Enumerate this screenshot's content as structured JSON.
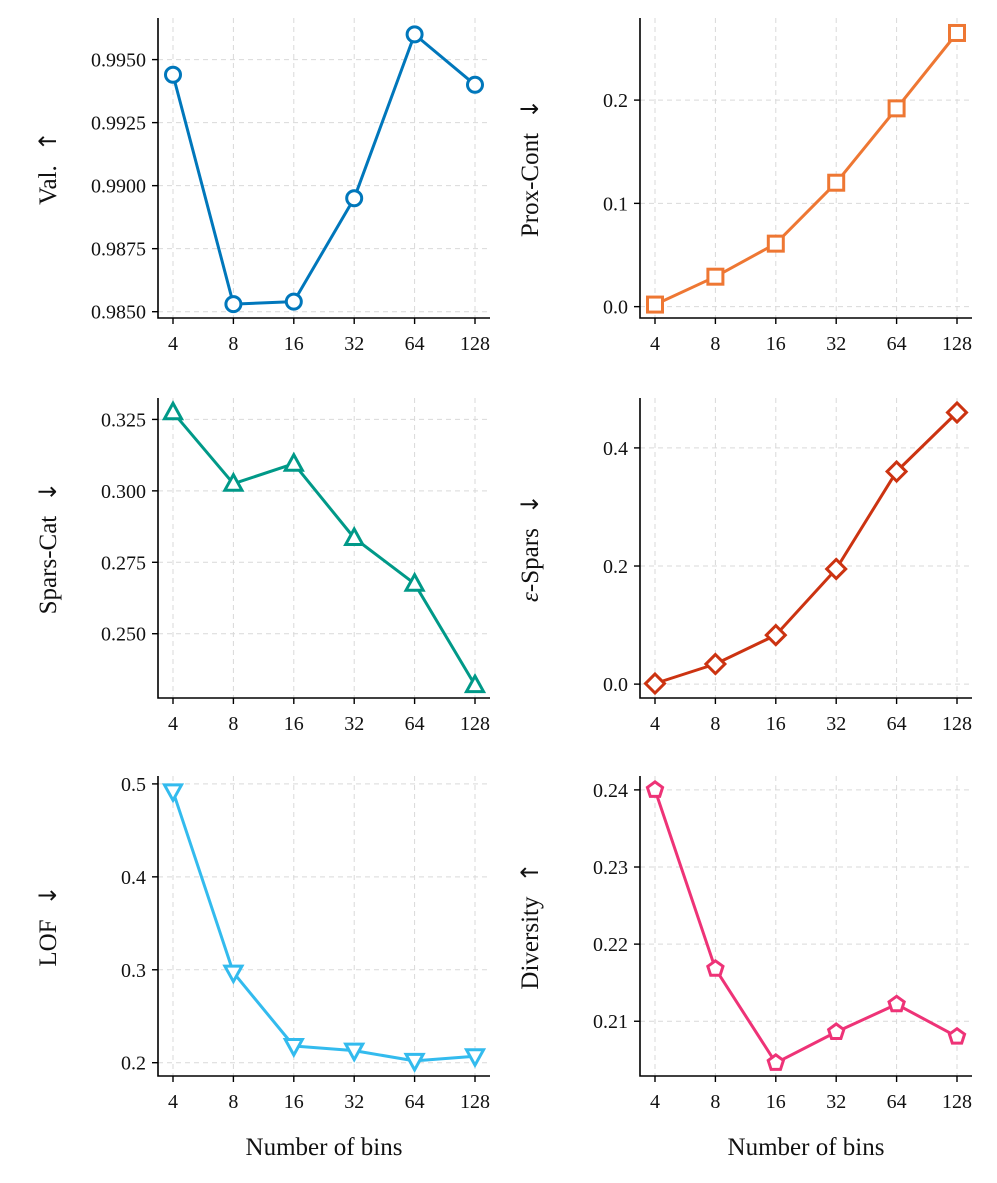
{
  "figure": {
    "xlabel": "Number of bins"
  },
  "chart_data": [
    {
      "type": "line",
      "id": "validity",
      "ylabel": "Val.",
      "ylabel_arrow": "↑",
      "categories": [
        "4",
        "8",
        "16",
        "32",
        "64",
        "128"
      ],
      "values": [
        0.9944,
        0.9853,
        0.9854,
        0.9895,
        0.996,
        0.994
      ],
      "ylim": [
        0.98475,
        0.99665
      ],
      "yticks": [
        0.985,
        0.9875,
        0.99,
        0.9925,
        0.995
      ],
      "ytick_labels": [
        "0.9850",
        "0.9875",
        "0.9900",
        "0.9925",
        "0.9950"
      ],
      "marker": "circle",
      "color": "#0077BB",
      "xlabel": "",
      "grid": true
    },
    {
      "type": "line",
      "id": "prox-cont",
      "ylabel": "Prox-Cont",
      "ylabel_arrow": "↓",
      "categories": [
        "4",
        "8",
        "16",
        "32",
        "64",
        "128"
      ],
      "values": [
        0.002,
        0.029,
        0.061,
        0.12,
        0.192,
        0.265
      ],
      "ylim": [
        -0.011,
        0.2795
      ],
      "yticks": [
        0.0,
        0.1,
        0.2
      ],
      "ytick_labels": [
        "0.0",
        "0.1",
        "0.2"
      ],
      "marker": "square",
      "color": "#EE7733",
      "xlabel": "",
      "grid": true
    },
    {
      "type": "line",
      "id": "spars-cat",
      "ylabel": "Spars-Cat",
      "ylabel_arrow": "↓",
      "categories": [
        "4",
        "8",
        "16",
        "32",
        "64",
        "128"
      ],
      "values": [
        0.3275,
        0.3025,
        0.3095,
        0.2835,
        0.2675,
        0.232
      ],
      "ylim": [
        0.2275,
        0.3325
      ],
      "yticks": [
        0.25,
        0.275,
        0.3,
        0.325
      ],
      "ytick_labels": [
        "0.250",
        "0.275",
        "0.300",
        "0.325"
      ],
      "marker": "triangle-up",
      "color": "#009988",
      "xlabel": "",
      "grid": true
    },
    {
      "type": "line",
      "id": "eps-spars",
      "ylabel": "-Spars",
      "ylabel_prefix": "ε",
      "ylabel_arrow": "↓",
      "categories": [
        "4",
        "8",
        "16",
        "32",
        "64",
        "128"
      ],
      "values": [
        0.001,
        0.034,
        0.083,
        0.195,
        0.36,
        0.46
      ],
      "ylim": [
        -0.0235,
        0.4845
      ],
      "yticks": [
        0.0,
        0.2,
        0.4
      ],
      "ytick_labels": [
        "0.0",
        "0.2",
        "0.4"
      ],
      "marker": "diamond",
      "color": "#CC3311",
      "xlabel": "",
      "grid": true
    },
    {
      "type": "line",
      "id": "lof",
      "ylabel": "LOF",
      "ylabel_arrow": "↓",
      "categories": [
        "4",
        "8",
        "16",
        "32",
        "64",
        "128"
      ],
      "values": [
        0.492,
        0.297,
        0.218,
        0.213,
        0.202,
        0.207
      ],
      "ylim": [
        0.1857,
        0.5085
      ],
      "yticks": [
        0.2,
        0.3,
        0.4,
        0.5
      ],
      "ytick_labels": [
        "0.2",
        "0.3",
        "0.4",
        "0.5"
      ],
      "marker": "triangle-down",
      "color": "#33BBEE",
      "xlabel": "Number of bins",
      "grid": true
    },
    {
      "type": "line",
      "id": "diversity",
      "ylabel": "Diversity",
      "ylabel_arrow": "↑",
      "categories": [
        "4",
        "8",
        "16",
        "32",
        "64",
        "128"
      ],
      "values": [
        0.24,
        0.2168,
        0.2046,
        0.2086,
        0.2122,
        0.208
      ],
      "ylim": [
        0.2029,
        0.2418
      ],
      "yticks": [
        0.21,
        0.22,
        0.23,
        0.24
      ],
      "ytick_labels": [
        "0.21",
        "0.22",
        "0.23",
        "0.24"
      ],
      "marker": "pentagon",
      "color": "#EE3377",
      "xlabel": "Number of bins",
      "grid": true
    }
  ]
}
